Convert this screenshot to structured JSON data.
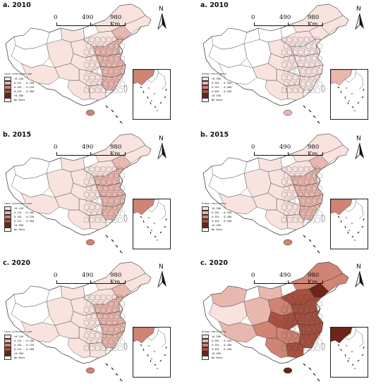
{
  "colors": {
    "c0": "#ffffff",
    "c1": "#f8e3df",
    "c2": "#e8b7ad",
    "c3": "#cf8474",
    "c4": "#a8503f",
    "c5": "#6e2418",
    "nodata": "#ffffff",
    "border": "#333333"
  },
  "scale_bar": {
    "t0": "0",
    "t1": "490",
    "t2": "980 Km"
  },
  "north_label": "N",
  "panels": [
    {
      "id": "lis2010",
      "title": "a. 2010",
      "legend_title": "Land intensive use",
      "legend": [
        "<0.140",
        "0.141 - 0.180",
        "0.181 - 0.220",
        "0.221 - 0.300",
        ">0.300",
        "No Data"
      ],
      "level": 2
    },
    {
      "id": "ur2010",
      "title": "a. 2010",
      "legend_title": "Urban resilience",
      "legend": [
        "<0.300",
        "0.301 - 0.350",
        "0.351 - 0.400",
        "0.401 - 0.450",
        ">0.450",
        "No Data"
      ],
      "level": 1
    },
    {
      "id": "lis2015",
      "title": "b. 2015",
      "legend_title": "Land intensive use",
      "legend": [
        "<0.140",
        "0.141 - 0.180",
        "0.181 - 0.220",
        "0.221 - 0.300",
        ">0.300",
        "No Data"
      ],
      "level": 2
    },
    {
      "id": "ur2015",
      "title": "b. 2015",
      "legend_title": "Urban resilience",
      "legend": [
        "<0.300",
        "0.301 - 0.350",
        "0.351 - 0.400",
        "0.401 - 0.450",
        ">0.450",
        "No Data"
      ],
      "level": 2
    },
    {
      "id": "lis2020",
      "title": "c. 2020",
      "legend_title": "Land intensive use",
      "legend": [
        "<0.140",
        "0.141 - 0.180",
        "0.181 - 0.220",
        "0.221 - 0.300",
        ">0.300",
        "No Data"
      ],
      "level": 2
    },
    {
      "id": "ur2020",
      "title": "c. 2020",
      "legend_title": "Urban resilience",
      "legend": [
        "<0.300",
        "0.301 - 0.350",
        "0.351 - 0.400",
        "0.401 - 0.450",
        ">0.450",
        "No Data"
      ],
      "level": 4
    }
  ]
}
